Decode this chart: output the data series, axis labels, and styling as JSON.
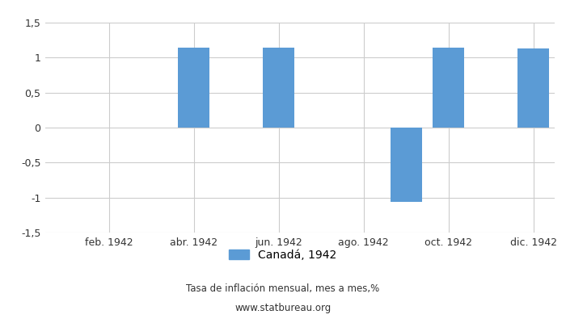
{
  "months": [
    1,
    2,
    3,
    4,
    5,
    6,
    7,
    8,
    9,
    10,
    11,
    12
  ],
  "values": [
    0,
    0,
    0,
    1.14,
    0,
    1.14,
    0,
    0.0,
    -1.06,
    1.14,
    0,
    1.13
  ],
  "bar_color": "#5b9bd5",
  "ylim": [
    -1.5,
    1.5
  ],
  "yticks": [
    -1.5,
    -1.0,
    -0.5,
    0.0,
    0.5,
    1.0,
    1.5
  ],
  "ytick_labels": [
    "-1,5",
    "-1",
    "-0,5",
    "0",
    "0,5",
    "1",
    "1,5"
  ],
  "xtick_positions": [
    2,
    4,
    6,
    8,
    10,
    12
  ],
  "xtick_labels": [
    "feb. 1942",
    "abr. 1942",
    "jun. 1942",
    "ago. 1942",
    "oct. 1942",
    "dic. 1942"
  ],
  "legend_label": "Canadá, 1942",
  "footnote_line1": "Tasa de inflación mensual, mes a mes,%",
  "footnote_line2": "www.statbureau.org",
  "background_color": "#ffffff",
  "grid_color": "#cccccc",
  "bar_width": 0.75
}
